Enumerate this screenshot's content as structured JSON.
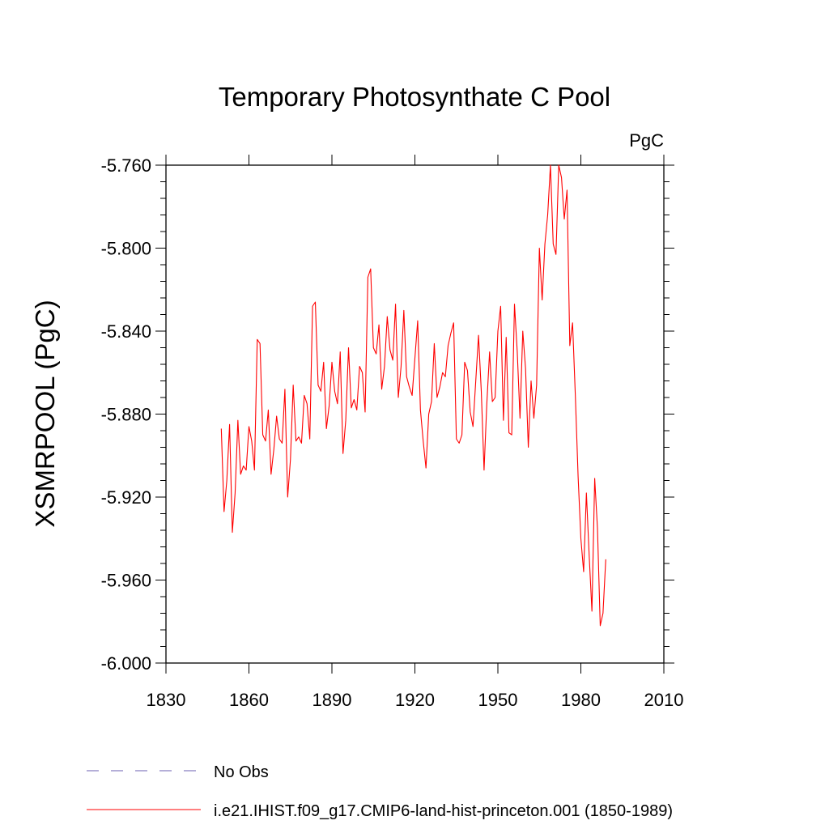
{
  "chart_data": {
    "type": "line",
    "title": "Temporary Photosynthate C Pool",
    "units": "PgC",
    "ylabel": "XSMRPOOL  (PgC)",
    "xlabel": "",
    "xlim": [
      1830,
      2010
    ],
    "ylim": [
      -6.0,
      -5.76
    ],
    "x_ticks": [
      1830,
      1860,
      1890,
      1920,
      1950,
      1980,
      2010
    ],
    "x_tick_labels": [
      "1830",
      "1860",
      "1890",
      "1920",
      "1950",
      "1980",
      "2010"
    ],
    "y_ticks": [
      -6.0,
      -5.96,
      -5.92,
      -5.88,
      -5.84,
      -5.8,
      -5.76
    ],
    "y_tick_labels": [
      "-6.000",
      "-5.960",
      "-5.920",
      "-5.880",
      "-5.840",
      "-5.800",
      "-5.760"
    ],
    "grid": false,
    "legend_position": "bottom",
    "legend": [
      {
        "label": "No Obs",
        "color": "#6b5fb0",
        "style": "dashed"
      },
      {
        "label": "i.e21.IHIST.f09_g17.CMIP6-land-hist-princeton.001 (1850-1989)",
        "color": "#ff0000",
        "style": "solid"
      }
    ],
    "series": [
      {
        "name": "i.e21.IHIST.f09_g17.CMIP6-land-hist-princeton.001 (1850-1989)",
        "color": "#ff0000",
        "x": [
          1850,
          1851,
          1852,
          1853,
          1854,
          1855,
          1856,
          1857,
          1858,
          1859,
          1860,
          1861,
          1862,
          1863,
          1864,
          1865,
          1866,
          1867,
          1868,
          1869,
          1870,
          1871,
          1872,
          1873,
          1874,
          1875,
          1876,
          1877,
          1878,
          1879,
          1880,
          1881,
          1882,
          1883,
          1884,
          1885,
          1886,
          1887,
          1888,
          1889,
          1890,
          1891,
          1892,
          1893,
          1894,
          1895,
          1896,
          1897,
          1898,
          1899,
          1900,
          1901,
          1902,
          1903,
          1904,
          1905,
          1906,
          1907,
          1908,
          1909,
          1910,
          1911,
          1912,
          1913,
          1914,
          1915,
          1916,
          1917,
          1918,
          1919,
          1920,
          1921,
          1922,
          1923,
          1924,
          1925,
          1926,
          1927,
          1928,
          1929,
          1930,
          1931,
          1932,
          1933,
          1934,
          1935,
          1936,
          1937,
          1938,
          1939,
          1940,
          1941,
          1942,
          1943,
          1944,
          1945,
          1946,
          1947,
          1948,
          1949,
          1950,
          1951,
          1952,
          1953,
          1954,
          1955,
          1956,
          1957,
          1958,
          1959,
          1960,
          1961,
          1962,
          1963,
          1964,
          1965,
          1966,
          1967,
          1968,
          1969,
          1970,
          1971,
          1972,
          1973,
          1974,
          1975,
          1976,
          1977,
          1978,
          1979,
          1980,
          1981,
          1982,
          1983,
          1984,
          1985,
          1986,
          1987,
          1988,
          1989
        ],
        "y": [
          -5.887,
          -5.927,
          -5.912,
          -5.885,
          -5.937,
          -5.918,
          -5.883,
          -5.909,
          -5.905,
          -5.907,
          -5.886,
          -5.893,
          -5.907,
          -5.844,
          -5.846,
          -5.89,
          -5.893,
          -5.878,
          -5.909,
          -5.897,
          -5.881,
          -5.892,
          -5.894,
          -5.868,
          -5.92,
          -5.902,
          -5.866,
          -5.893,
          -5.891,
          -5.894,
          -5.871,
          -5.875,
          -5.892,
          -5.828,
          -5.826,
          -5.866,
          -5.869,
          -5.855,
          -5.887,
          -5.876,
          -5.855,
          -5.869,
          -5.875,
          -5.85,
          -5.899,
          -5.883,
          -5.848,
          -5.877,
          -5.873,
          -5.878,
          -5.857,
          -5.86,
          -5.879,
          -5.814,
          -5.81,
          -5.848,
          -5.851,
          -5.837,
          -5.868,
          -5.857,
          -5.833,
          -5.849,
          -5.854,
          -5.827,
          -5.872,
          -5.857,
          -5.83,
          -5.862,
          -5.867,
          -5.871,
          -5.853,
          -5.835,
          -5.878,
          -5.893,
          -5.906,
          -5.88,
          -5.874,
          -5.846,
          -5.872,
          -5.867,
          -5.86,
          -5.862,
          -5.847,
          -5.841,
          -5.836,
          -5.892,
          -5.894,
          -5.89,
          -5.855,
          -5.859,
          -5.879,
          -5.886,
          -5.864,
          -5.842,
          -5.869,
          -5.907,
          -5.875,
          -5.85,
          -5.874,
          -5.872,
          -5.84,
          -5.828,
          -5.883,
          -5.843,
          -5.889,
          -5.89,
          -5.827,
          -5.85,
          -5.882,
          -5.84,
          -5.858,
          -5.896,
          -5.864,
          -5.882,
          -5.866,
          -5.8,
          -5.825,
          -5.798,
          -5.784,
          -5.76,
          -5.798,
          -5.803,
          -5.76,
          -5.766,
          -5.786,
          -5.772,
          -5.847,
          -5.836,
          -5.871,
          -5.91,
          -5.94,
          -5.956,
          -5.918,
          -5.948,
          -5.975,
          -5.911,
          -5.935,
          -5.982,
          -5.976,
          -5.95
        ]
      }
    ]
  }
}
